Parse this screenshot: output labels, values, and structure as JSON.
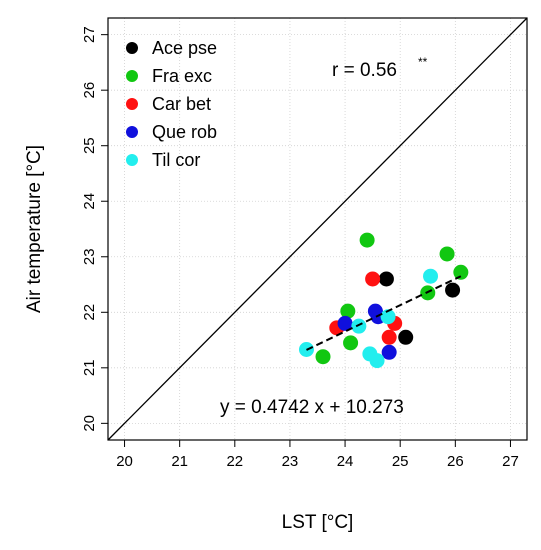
{
  "chart_data": {
    "type": "scatter",
    "xlabel": "LST [°C]",
    "ylabel": "Air temperature [°C]",
    "xlim": [
      19.7,
      27.3
    ],
    "ylim": [
      19.7,
      27.3
    ],
    "xticks": [
      "20",
      "21",
      "22",
      "23",
      "24",
      "25",
      "26",
      "27"
    ],
    "yticks": [
      "20",
      "21",
      "22",
      "23",
      "24",
      "25",
      "26",
      "27"
    ],
    "grid": true,
    "legend_position": "top-left",
    "annotations": {
      "r_text": "r = 0.56",
      "r_sup": "**",
      "equation": "y = 0.4742 x + 10.273"
    },
    "reference_line": {
      "type": "1:1",
      "from": [
        19.7,
        19.7
      ],
      "to": [
        27.3,
        27.3
      ]
    },
    "fit_line": {
      "slope": 0.4742,
      "intercept": 10.273,
      "x_range": [
        23.3,
        26.1
      ],
      "style": "dashed"
    },
    "series": [
      {
        "name": "Ace pse",
        "color": "#000000",
        "points": [
          [
            24.75,
            22.6
          ],
          [
            25.95,
            22.4
          ],
          [
            25.1,
            21.55
          ]
        ]
      },
      {
        "name": "Fra exc",
        "color": "#11c711",
        "points": [
          [
            24.4,
            23.3
          ],
          [
            25.85,
            23.05
          ],
          [
            26.1,
            22.72
          ],
          [
            25.5,
            22.35
          ],
          [
            24.05,
            22.02
          ],
          [
            24.1,
            21.45
          ],
          [
            23.6,
            21.2
          ]
        ]
      },
      {
        "name": "Car bet",
        "color": "#ff1111",
        "points": [
          [
            24.5,
            22.6
          ],
          [
            24.9,
            21.8
          ],
          [
            24.8,
            21.55
          ],
          [
            23.85,
            21.72
          ]
        ]
      },
      {
        "name": "Que rob",
        "color": "#1010dd",
        "points": [
          [
            24.55,
            22.02
          ],
          [
            24.6,
            21.92
          ],
          [
            24.0,
            21.8
          ],
          [
            24.8,
            21.28
          ]
        ]
      },
      {
        "name": "Til cor",
        "color": "#22eeee",
        "points": [
          [
            25.55,
            22.65
          ],
          [
            24.25,
            21.75
          ],
          [
            23.3,
            21.33
          ],
          [
            24.45,
            21.25
          ],
          [
            24.58,
            21.13
          ],
          [
            24.78,
            21.92
          ]
        ]
      }
    ]
  }
}
